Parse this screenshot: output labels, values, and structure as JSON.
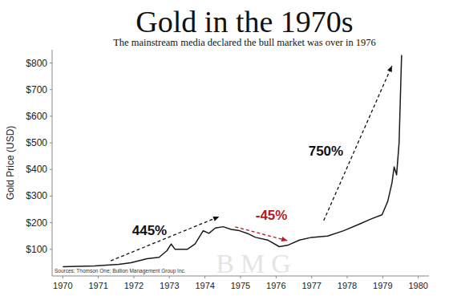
{
  "chart_data": {
    "type": "line",
    "title": "Gold in the 1970s",
    "subtitle": "The mainstream media declared the bull market was over in 1976",
    "y_label": "Gold Price (USD)",
    "source": "Sources: Thomson One; Bullion Management Group Inc.",
    "watermark": "BMG",
    "x": [
      1970.0,
      1970.9,
      1971.58,
      1971.92,
      1972.37,
      1972.71,
      1972.93,
      1973.05,
      1973.16,
      1973.5,
      1973.72,
      1973.95,
      1974.11,
      1974.29,
      1974.51,
      1974.74,
      1974.97,
      1975.19,
      1975.42,
      1975.76,
      1976.09,
      1976.32,
      1976.66,
      1977.0,
      1977.45,
      1977.9,
      1978.35,
      1978.69,
      1978.98,
      1979.14,
      1979.26,
      1979.32,
      1979.39,
      1979.46,
      1979.53
    ],
    "values": [
      35,
      38,
      44,
      50,
      65,
      70,
      95,
      120,
      100,
      100,
      120,
      170,
      160,
      180,
      185,
      175,
      170,
      160,
      145,
      135,
      110,
      115,
      135,
      145,
      150,
      170,
      195,
      215,
      230,
      280,
      350,
      410,
      380,
      500,
      830
    ],
    "color": "#1a1a1a",
    "xlim": [
      1969.7,
      1980.3
    ],
    "xticks": [
      1970,
      1971,
      1972,
      1973,
      1974,
      1975,
      1976,
      1977,
      1978,
      1979,
      1980
    ],
    "ylim": [
      0,
      850
    ],
    "yticks": [
      {
        "value": 100,
        "label": "$100"
      },
      {
        "value": 200,
        "label": "$200"
      },
      {
        "value": 300,
        "label": "$300"
      },
      {
        "value": 400,
        "label": "$400"
      },
      {
        "value": 500,
        "label": "$500"
      },
      {
        "value": 600,
        "label": "$600"
      },
      {
        "value": 700,
        "label": "$700"
      },
      {
        "value": 800,
        "label": "$800"
      }
    ],
    "grid": false,
    "annotations": [
      {
        "text": "445%",
        "color": "#111111",
        "x": 1972.44,
        "y": 172
      },
      {
        "text": "-45%",
        "color": "#b3191e",
        "x": 1975.87,
        "y": 229
      },
      {
        "text": "750%",
        "color": "#111111",
        "x": 1977.4,
        "y": 470
      }
    ]
  }
}
